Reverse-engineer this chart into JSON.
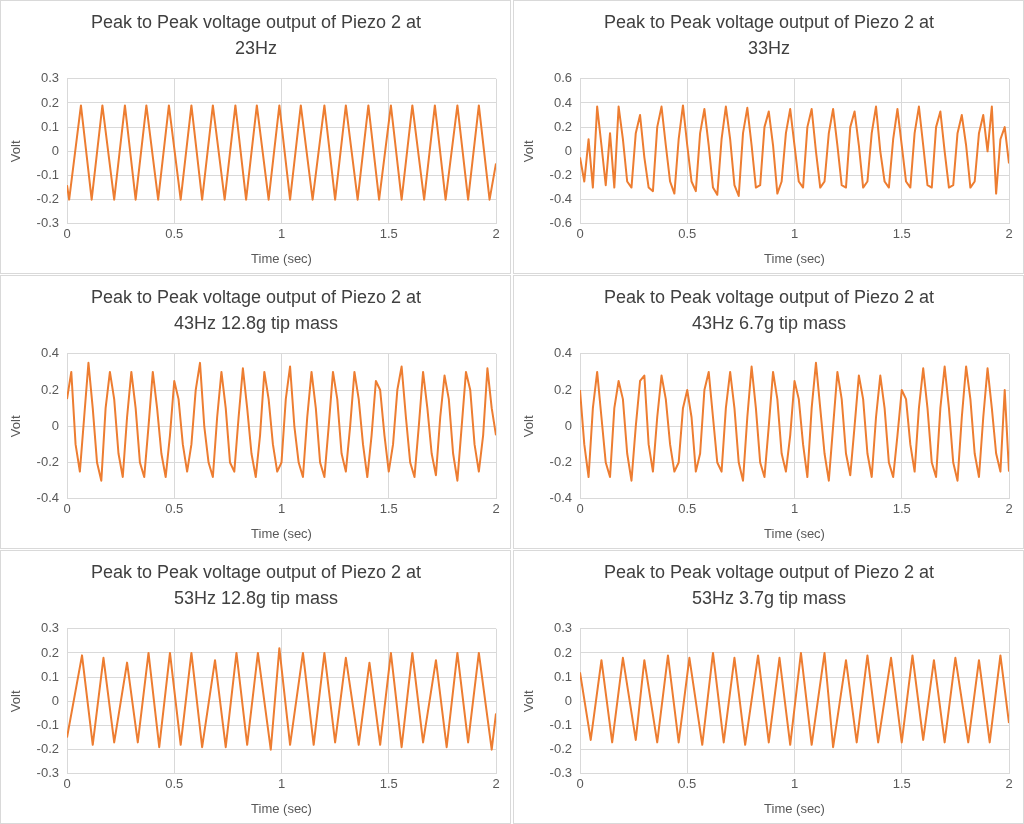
{
  "chart_data": [
    {
      "type": "line",
      "title": "Peak to Peak voltage output of Piezo 2 at 23Hz",
      "xlabel": "Time (sec)",
      "ylabel": "Volt",
      "marker": "none",
      "line_style": "solid",
      "grid": true,
      "x": [
        0,
        0.01,
        0.065,
        0.115,
        0.165,
        0.22,
        0.27,
        0.32,
        0.37,
        0.425,
        0.475,
        0.53,
        0.58,
        0.63,
        0.68,
        0.735,
        0.785,
        0.835,
        0.885,
        0.94,
        0.99,
        1.04,
        1.09,
        1.145,
        1.2,
        1.25,
        1.3,
        1.355,
        1.405,
        1.455,
        1.51,
        1.56,
        1.61,
        1.665,
        1.715,
        1.765,
        1.82,
        1.87,
        1.92,
        1.97,
        2
      ],
      "series": [
        {
          "color": "#ed7d31",
          "values": [
            -0.14,
            -0.2,
            0.19,
            -0.2,
            0.19,
            -0.2,
            0.19,
            -0.2,
            0.19,
            -0.2,
            0.19,
            -0.2,
            0.19,
            -0.2,
            0.19,
            -0.2,
            0.19,
            -0.2,
            0.19,
            -0.2,
            0.19,
            -0.2,
            0.19,
            -0.2,
            0.19,
            -0.2,
            0.19,
            -0.2,
            0.19,
            -0.2,
            0.19,
            -0.2,
            0.19,
            -0.2,
            0.19,
            -0.2,
            0.19,
            -0.2,
            0.19,
            -0.2,
            -0.05
          ]
        }
      ],
      "xlim": [
        0,
        2
      ],
      "xticks": [
        0,
        0.5,
        1,
        1.5,
        2
      ],
      "ylim": [
        -0.3,
        0.3
      ],
      "yticks": [
        -0.3,
        -0.2,
        -0.1,
        0,
        0.1,
        0.2,
        0.3
      ]
    },
    {
      "type": "line",
      "title": "Peak to Peak voltage output of Piezo 2 at 33Hz",
      "xlabel": "Time (sec)",
      "ylabel": "Volt",
      "marker": "none",
      "line_style": "solid",
      "grid": true,
      "x": [
        0,
        0.02,
        0.04,
        0.06,
        0.08,
        0.1,
        0.12,
        0.14,
        0.16,
        0.18,
        0.2,
        0.22,
        0.24,
        0.26,
        0.28,
        0.3,
        0.32,
        0.34,
        0.36,
        0.38,
        0.4,
        0.42,
        0.44,
        0.46,
        0.48,
        0.5,
        0.52,
        0.54,
        0.56,
        0.58,
        0.6,
        0.62,
        0.64,
        0.66,
        0.68,
        0.7,
        0.72,
        0.74,
        0.76,
        0.78,
        0.8,
        0.82,
        0.84,
        0.86,
        0.88,
        0.9,
        0.92,
        0.94,
        0.96,
        0.98,
        1,
        1.02,
        1.04,
        1.06,
        1.08,
        1.1,
        1.12,
        1.14,
        1.16,
        1.18,
        1.2,
        1.22,
        1.24,
        1.26,
        1.28,
        1.3,
        1.32,
        1.34,
        1.36,
        1.38,
        1.4,
        1.42,
        1.44,
        1.46,
        1.48,
        1.5,
        1.52,
        1.54,
        1.56,
        1.58,
        1.6,
        1.62,
        1.64,
        1.66,
        1.68,
        1.7,
        1.72,
        1.74,
        1.76,
        1.78,
        1.8,
        1.82,
        1.84,
        1.86,
        1.88,
        1.9,
        1.92,
        1.94,
        1.96,
        1.98,
        2
      ],
      "series": [
        {
          "color": "#ed7d31",
          "values": [
            -0.05,
            -0.25,
            0.1,
            -0.3,
            0.37,
            0.05,
            -0.28,
            0.15,
            -0.3,
            0.37,
            0.1,
            -0.25,
            -0.3,
            0.15,
            0.3,
            -0.05,
            -0.3,
            -0.33,
            0.2,
            0.37,
            0.05,
            -0.25,
            -0.35,
            0.1,
            0.38,
            0.05,
            -0.25,
            -0.33,
            0.15,
            0.35,
            0.05,
            -0.3,
            -0.36,
            0.1,
            0.37,
            0.1,
            -0.28,
            -0.37,
            0.15,
            0.36,
            0.05,
            -0.3,
            -0.28,
            0.2,
            0.33,
            0.05,
            -0.35,
            -0.25,
            0.15,
            0.35,
            0.05,
            -0.25,
            -0.3,
            0.2,
            0.35,
            0,
            -0.3,
            -0.25,
            0.15,
            0.35,
            0.05,
            -0.28,
            -0.3,
            0.2,
            0.33,
            0.05,
            -0.3,
            -0.25,
            0.15,
            0.37,
            0,
            -0.25,
            -0.3,
            0.1,
            0.35,
            0.05,
            -0.25,
            -0.3,
            0.15,
            0.37,
            0.05,
            -0.28,
            -0.3,
            0.2,
            0.33,
            0,
            -0.3,
            -0.28,
            0.15,
            0.3,
            0.05,
            -0.3,
            -0.25,
            0.15,
            0.3,
            0,
            0.37,
            -0.35,
            0.1,
            0.2,
            -0.1
          ]
        }
      ],
      "xlim": [
        0,
        2
      ],
      "xticks": [
        0,
        0.5,
        1,
        1.5,
        2
      ],
      "ylim": [
        -0.6,
        0.6
      ],
      "yticks": [
        -0.6,
        -0.4,
        -0.2,
        0,
        0.2,
        0.4,
        0.6
      ]
    },
    {
      "type": "line",
      "title": "Peak to Peak voltage output of Piezo 2 at 43Hz 12.8g tip mass",
      "xlabel": "Time (sec)",
      "ylabel": "Volt",
      "marker": "none",
      "line_style": "solid",
      "grid": true,
      "x": [
        0,
        0.02,
        0.04,
        0.06,
        0.08,
        0.1,
        0.12,
        0.14,
        0.16,
        0.18,
        0.2,
        0.22,
        0.24,
        0.26,
        0.28,
        0.3,
        0.32,
        0.34,
        0.36,
        0.38,
        0.4,
        0.42,
        0.44,
        0.46,
        0.48,
        0.5,
        0.52,
        0.54,
        0.56,
        0.58,
        0.6,
        0.62,
        0.64,
        0.66,
        0.68,
        0.7,
        0.72,
        0.74,
        0.76,
        0.78,
        0.8,
        0.82,
        0.84,
        0.86,
        0.88,
        0.9,
        0.92,
        0.94,
        0.96,
        0.98,
        1,
        1.02,
        1.04,
        1.06,
        1.08,
        1.1,
        1.12,
        1.14,
        1.16,
        1.18,
        1.2,
        1.22,
        1.24,
        1.26,
        1.28,
        1.3,
        1.32,
        1.34,
        1.36,
        1.38,
        1.4,
        1.42,
        1.44,
        1.46,
        1.48,
        1.5,
        1.52,
        1.54,
        1.56,
        1.58,
        1.6,
        1.62,
        1.64,
        1.66,
        1.68,
        1.7,
        1.72,
        1.74,
        1.76,
        1.78,
        1.8,
        1.82,
        1.84,
        1.86,
        1.88,
        1.9,
        1.92,
        1.94,
        1.96,
        1.98,
        2
      ],
      "series": [
        {
          "color": "#ed7d31",
          "values": [
            0.15,
            0.3,
            -0.1,
            -0.25,
            0.05,
            0.35,
            0.1,
            -0.2,
            -0.3,
            0.1,
            0.3,
            0.15,
            -0.15,
            -0.28,
            0.05,
            0.3,
            0.1,
            -0.2,
            -0.28,
            0,
            0.3,
            0.1,
            -0.15,
            -0.28,
            -0.05,
            0.25,
            0.15,
            -0.1,
            -0.25,
            -0.1,
            0.2,
            0.35,
            0,
            -0.2,
            -0.28,
            0.05,
            0.3,
            0.1,
            -0.2,
            -0.25,
            0.05,
            0.32,
            0.1,
            -0.15,
            -0.28,
            -0.05,
            0.3,
            0.15,
            -0.1,
            -0.25,
            -0.2,
            0.15,
            0.33,
            0,
            -0.2,
            -0.28,
            0.05,
            0.3,
            0.1,
            -0.2,
            -0.28,
            0,
            0.3,
            0.15,
            -0.15,
            -0.25,
            0,
            0.3,
            0.15,
            -0.1,
            -0.28,
            -0.05,
            0.25,
            0.2,
            -0.05,
            -0.25,
            -0.1,
            0.2,
            0.33,
            0.05,
            -0.2,
            -0.28,
            0,
            0.3,
            0.1,
            -0.15,
            -0.27,
            0.05,
            0.28,
            0.15,
            -0.15,
            -0.3,
            0,
            0.3,
            0.2,
            -0.1,
            -0.25,
            -0.05,
            0.32,
            0.1,
            -0.05
          ]
        }
      ],
      "xlim": [
        0,
        2
      ],
      "xticks": [
        0,
        0.5,
        1,
        1.5,
        2
      ],
      "ylim": [
        -0.4,
        0.4
      ],
      "yticks": [
        -0.4,
        -0.2,
        0,
        0.2,
        0.4
      ]
    },
    {
      "type": "line",
      "title": "Peak to Peak voltage output of Piezo 2 at 43Hz 6.7g tip mass",
      "xlabel": "Time (sec)",
      "ylabel": "Volt",
      "marker": "none",
      "line_style": "solid",
      "grid": true,
      "x": [
        0,
        0.02,
        0.04,
        0.06,
        0.08,
        0.1,
        0.12,
        0.14,
        0.16,
        0.18,
        0.2,
        0.22,
        0.24,
        0.26,
        0.28,
        0.3,
        0.32,
        0.34,
        0.36,
        0.38,
        0.4,
        0.42,
        0.44,
        0.46,
        0.48,
        0.5,
        0.52,
        0.54,
        0.56,
        0.58,
        0.6,
        0.62,
        0.64,
        0.66,
        0.68,
        0.7,
        0.72,
        0.74,
        0.76,
        0.78,
        0.8,
        0.82,
        0.84,
        0.86,
        0.88,
        0.9,
        0.92,
        0.94,
        0.96,
        0.98,
        1,
        1.02,
        1.04,
        1.06,
        1.08,
        1.1,
        1.12,
        1.14,
        1.16,
        1.18,
        1.2,
        1.22,
        1.24,
        1.26,
        1.28,
        1.3,
        1.32,
        1.34,
        1.36,
        1.38,
        1.4,
        1.42,
        1.44,
        1.46,
        1.48,
        1.5,
        1.52,
        1.54,
        1.56,
        1.58,
        1.6,
        1.62,
        1.64,
        1.66,
        1.68,
        1.7,
        1.72,
        1.74,
        1.76,
        1.78,
        1.8,
        1.82,
        1.84,
        1.86,
        1.88,
        1.9,
        1.92,
        1.94,
        1.96,
        1.98,
        2
      ],
      "series": [
        {
          "color": "#ed7d31",
          "values": [
            0.2,
            -0.1,
            -0.28,
            0.1,
            0.3,
            0.05,
            -0.2,
            -0.28,
            0.1,
            0.25,
            0.15,
            -0.15,
            -0.3,
            0,
            0.25,
            0.28,
            -0.1,
            -0.25,
            0.05,
            0.28,
            0.15,
            -0.1,
            -0.25,
            -0.2,
            0.1,
            0.2,
            0.05,
            -0.25,
            -0.15,
            0.2,
            0.3,
            0.05,
            -0.2,
            -0.25,
            0.1,
            0.3,
            0.1,
            -0.2,
            -0.3,
            0.05,
            0.33,
            0.1,
            -0.2,
            -0.28,
            0,
            0.3,
            0.15,
            -0.15,
            -0.25,
            -0.05,
            0.25,
            0.15,
            -0.1,
            -0.28,
            0.1,
            0.35,
            0.1,
            -0.15,
            -0.3,
            0,
            0.3,
            0.15,
            -0.15,
            -0.27,
            0,
            0.28,
            0.15,
            -0.15,
            -0.28,
            0.05,
            0.28,
            0.1,
            -0.2,
            -0.28,
            -0.05,
            0.2,
            0.15,
            -0.1,
            -0.25,
            0.1,
            0.32,
            0.1,
            -0.2,
            -0.28,
            0.1,
            0.33,
            0.1,
            -0.2,
            -0.3,
            0.05,
            0.33,
            0.15,
            -0.15,
            -0.28,
            0.05,
            0.32,
            0.1,
            -0.15,
            -0.25,
            0.2,
            -0.25
          ]
        }
      ],
      "xlim": [
        0,
        2
      ],
      "xticks": [
        0,
        0.5,
        1,
        1.5,
        2
      ],
      "ylim": [
        -0.4,
        0.4
      ],
      "yticks": [
        -0.4,
        -0.2,
        0,
        0.2,
        0.4
      ]
    },
    {
      "type": "line",
      "title": "Peak to Peak voltage output of Piezo 2 at 53Hz 12.8g tip mass",
      "xlabel": "Time (sec)",
      "ylabel": "Volt",
      "marker": "none",
      "line_style": "solid",
      "grid": true,
      "x": [
        0,
        0.07,
        0.12,
        0.17,
        0.22,
        0.28,
        0.33,
        0.38,
        0.43,
        0.48,
        0.53,
        0.58,
        0.63,
        0.69,
        0.74,
        0.79,
        0.84,
        0.89,
        0.95,
        0.99,
        1.04,
        1.1,
        1.15,
        1.2,
        1.25,
        1.3,
        1.36,
        1.41,
        1.46,
        1.51,
        1.56,
        1.61,
        1.66,
        1.72,
        1.77,
        1.82,
        1.87,
        1.92,
        1.98,
        2
      ],
      "series": [
        {
          "color": "#ed7d31",
          "values": [
            -0.15,
            0.19,
            -0.18,
            0.18,
            -0.17,
            0.16,
            -0.17,
            0.2,
            -0.19,
            0.2,
            -0.18,
            0.2,
            -0.19,
            0.17,
            -0.19,
            0.2,
            -0.18,
            0.2,
            -0.2,
            0.22,
            -0.18,
            0.2,
            -0.18,
            0.2,
            -0.17,
            0.18,
            -0.18,
            0.16,
            -0.18,
            0.2,
            -0.19,
            0.2,
            -0.17,
            0.17,
            -0.19,
            0.2,
            -0.17,
            0.2,
            -0.2,
            -0.05
          ]
        }
      ],
      "xlim": [
        0,
        2
      ],
      "xticks": [
        0,
        0.5,
        1,
        1.5,
        2
      ],
      "ylim": [
        -0.3,
        0.3
      ],
      "yticks": [
        -0.3,
        -0.2,
        -0.1,
        0,
        0.1,
        0.2,
        0.3
      ]
    },
    {
      "type": "line",
      "title": "Peak to Peak voltage output of Piezo 2 at 53Hz 3.7g tip mass",
      "xlabel": "Time (sec)",
      "ylabel": "Volt",
      "marker": "none",
      "line_style": "solid",
      "grid": true,
      "x": [
        0,
        0.05,
        0.1,
        0.15,
        0.2,
        0.26,
        0.3,
        0.36,
        0.41,
        0.46,
        0.51,
        0.57,
        0.62,
        0.67,
        0.72,
        0.77,
        0.83,
        0.88,
        0.93,
        0.98,
        1.03,
        1.08,
        1.14,
        1.18,
        1.24,
        1.29,
        1.34,
        1.39,
        1.45,
        1.5,
        1.55,
        1.6,
        1.65,
        1.7,
        1.75,
        1.81,
        1.86,
        1.91,
        1.96,
        2
      ],
      "series": [
        {
          "color": "#ed7d31",
          "values": [
            0.12,
            -0.16,
            0.17,
            -0.17,
            0.18,
            -0.16,
            0.17,
            -0.17,
            0.19,
            -0.17,
            0.18,
            -0.18,
            0.2,
            -0.17,
            0.18,
            -0.18,
            0.19,
            -0.17,
            0.18,
            -0.18,
            0.2,
            -0.18,
            0.2,
            -0.19,
            0.17,
            -0.17,
            0.19,
            -0.17,
            0.18,
            -0.17,
            0.19,
            -0.16,
            0.17,
            -0.17,
            0.18,
            -0.17,
            0.17,
            -0.17,
            0.19,
            -0.09
          ]
        }
      ],
      "xlim": [
        0,
        2
      ],
      "xticks": [
        0,
        0.5,
        1,
        1.5,
        2
      ],
      "ylim": [
        -0.3,
        0.3
      ],
      "yticks": [
        -0.3,
        -0.2,
        -0.1,
        0,
        0.1,
        0.2,
        0.3
      ]
    }
  ]
}
